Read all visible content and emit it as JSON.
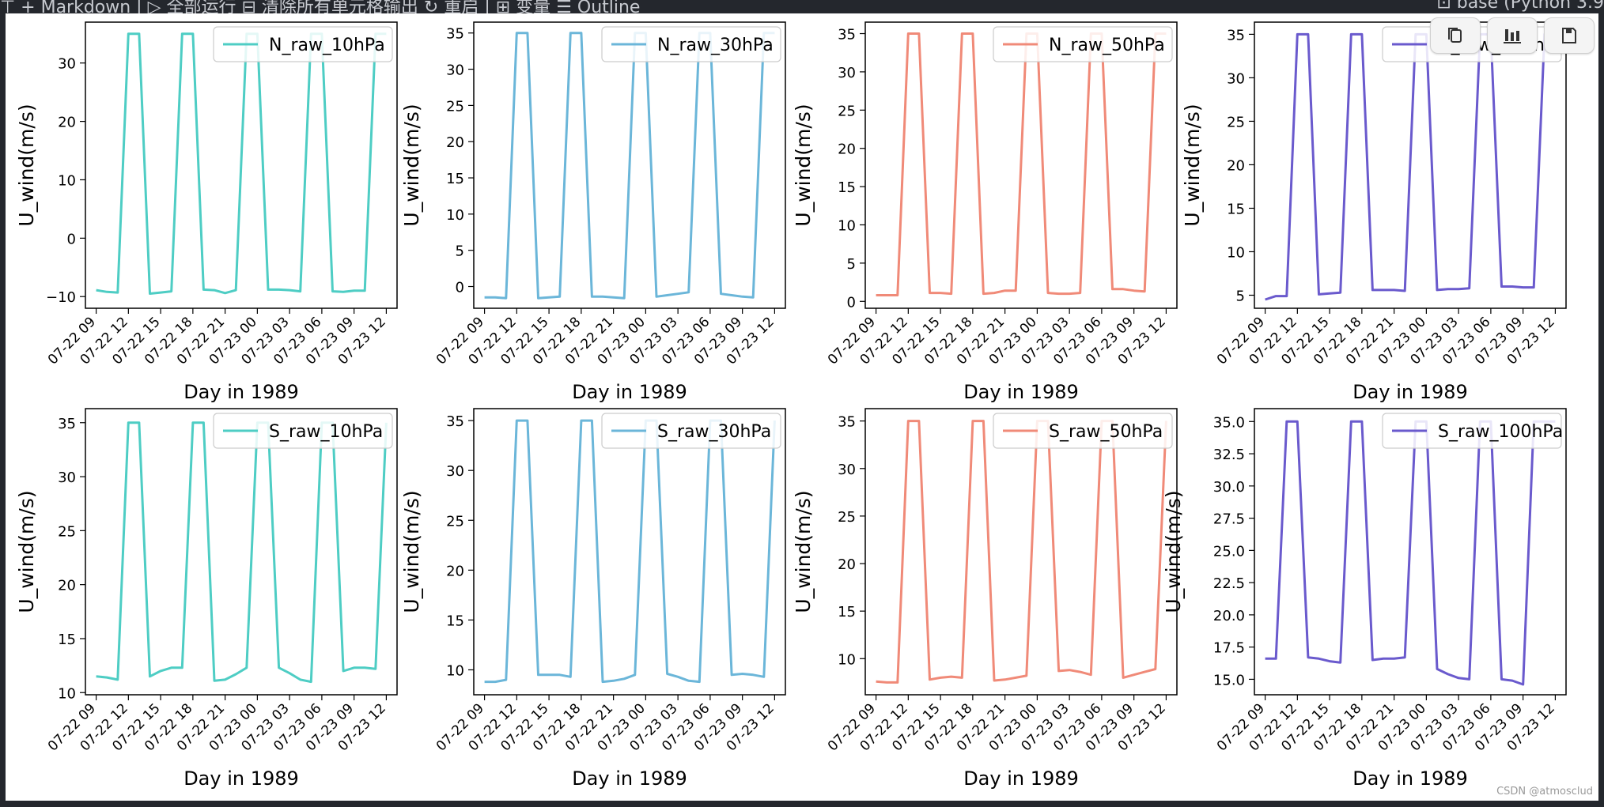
{
  "toolbar": {
    "text": "⊤  + Markdown  |  ▷ 全部运行  ⊟ 清除所有单元格输出  ↻ 重启  |  ⊞ 变量  ☰ Outline",
    "kernel": "⊡ base (Python 3.9"
  },
  "output_tools": [
    {
      "icon": "copy-icon"
    },
    {
      "icon": "chart-icon"
    },
    {
      "icon": "save-icon"
    }
  ],
  "watermark": "CSDN @atmosclud",
  "colors": {
    "teal": "#4ecdc4",
    "skyblue": "#6bb6d9",
    "salmon": "#f08a78",
    "purple": "#6a5acd"
  },
  "chart_data": [
    {
      "type": "line",
      "legend": "N_raw_10hPa",
      "color": "#4ecdc4",
      "xlabel": "Day in 1989",
      "ylabel": "U_wind(m/s)",
      "ylim": [
        -12,
        37
      ],
      "yticks": [
        -10,
        0,
        10,
        20,
        30
      ],
      "ytick_labels": [
        "−10",
        "0",
        "10",
        "20",
        "30"
      ],
      "x": [
        0,
        1,
        2,
        3,
        4,
        5,
        6,
        7,
        8,
        9,
        10,
        11,
        12,
        13,
        14,
        15,
        16,
        17,
        18,
        19,
        20,
        21,
        22,
        23,
        24,
        25,
        26,
        27
      ],
      "values": [
        -8.9,
        -9.2,
        -9.3,
        35,
        35,
        -9.5,
        -9.3,
        -9.1,
        35,
        35,
        -8.8,
        -8.9,
        -9.4,
        -8.9,
        35,
        35,
        -8.8,
        -8.8,
        -8.9,
        -9.1,
        35,
        35,
        -9.1,
        -9.2,
        -9.0,
        -9.0,
        35,
        35
      ]
    },
    {
      "type": "line",
      "legend": "N_raw_30hPa",
      "color": "#6bb6d9",
      "xlabel": "Day in 1989",
      "ylabel": "U_wind(m/s)",
      "ylim": [
        -3,
        36.5
      ],
      "yticks": [
        0,
        5,
        10,
        15,
        20,
        25,
        30,
        35
      ],
      "ytick_labels": [
        "0",
        "5",
        "10",
        "15",
        "20",
        "25",
        "30",
        "35"
      ],
      "x": [
        0,
        1,
        2,
        3,
        4,
        5,
        6,
        7,
        8,
        9,
        10,
        11,
        12,
        13,
        14,
        15,
        16,
        17,
        18,
        19,
        20,
        21,
        22,
        23,
        24,
        25,
        26,
        27
      ],
      "values": [
        -1.5,
        -1.5,
        -1.6,
        35,
        35,
        -1.6,
        -1.5,
        -1.4,
        35,
        35,
        -1.4,
        -1.4,
        -1.5,
        -1.6,
        35,
        35,
        -1.4,
        -1.2,
        -1.0,
        -0.8,
        35,
        35,
        -1.0,
        -1.2,
        -1.4,
        -1.5,
        35,
        35
      ]
    },
    {
      "type": "line",
      "legend": "N_raw_50hPa",
      "color": "#f08a78",
      "xlabel": "Day in 1989",
      "ylabel": "U_wind(m/s)",
      "ylim": [
        -0.9,
        36.5
      ],
      "yticks": [
        0,
        5,
        10,
        15,
        20,
        25,
        30,
        35
      ],
      "ytick_labels": [
        "0",
        "5",
        "10",
        "15",
        "20",
        "25",
        "30",
        "35"
      ],
      "x": [
        0,
        1,
        2,
        3,
        4,
        5,
        6,
        7,
        8,
        9,
        10,
        11,
        12,
        13,
        14,
        15,
        16,
        17,
        18,
        19,
        20,
        21,
        22,
        23,
        24,
        25,
        26,
        27
      ],
      "values": [
        0.8,
        0.8,
        0.8,
        35,
        35,
        1.1,
        1.1,
        1.0,
        35,
        35,
        1.0,
        1.1,
        1.4,
        1.4,
        35,
        35,
        1.1,
        1.0,
        1.0,
        1.1,
        35,
        35,
        1.6,
        1.6,
        1.4,
        1.3,
        35,
        35
      ]
    },
    {
      "type": "line",
      "legend": "N_raw_100hPa",
      "color": "#6a5acd",
      "xlabel": "Day in 1989",
      "ylabel": "U_wind(m/s)",
      "ylim": [
        3.5,
        36.4
      ],
      "yticks": [
        5,
        10,
        15,
        20,
        25,
        30,
        35
      ],
      "ytick_labels": [
        "5",
        "10",
        "15",
        "20",
        "25",
        "30",
        "35"
      ],
      "x": [
        0,
        1,
        2,
        3,
        4,
        5,
        6,
        7,
        8,
        9,
        10,
        11,
        12,
        13,
        14,
        15,
        16,
        17,
        18,
        19,
        20,
        21,
        22,
        23,
        24,
        25,
        26,
        27
      ],
      "values": [
        4.5,
        4.9,
        4.9,
        35,
        35,
        5.1,
        5.2,
        5.3,
        35,
        35,
        5.6,
        5.6,
        5.6,
        5.5,
        35,
        35,
        5.6,
        5.7,
        5.7,
        5.8,
        35,
        35,
        6.0,
        6.0,
        5.9,
        5.9,
        35,
        35
      ]
    },
    {
      "type": "line",
      "legend": "S_raw_10hPa",
      "color": "#4ecdc4",
      "xlabel": "Day in 1989",
      "ylabel": "U_wind(m/s)",
      "ylim": [
        9.8,
        36.3
      ],
      "yticks": [
        10,
        15,
        20,
        25,
        30,
        35
      ],
      "ytick_labels": [
        "10",
        "15",
        "20",
        "25",
        "30",
        "35"
      ],
      "x": [
        0,
        1,
        2,
        3,
        4,
        5,
        6,
        7,
        8,
        9,
        10,
        11,
        12,
        13,
        14,
        15,
        16,
        17,
        18,
        19,
        20,
        21,
        22,
        23,
        24,
        25,
        26,
        27
      ],
      "values": [
        11.5,
        11.4,
        11.2,
        35,
        35,
        11.5,
        12.0,
        12.3,
        12.3,
        35,
        35,
        11.1,
        11.2,
        11.7,
        12.3,
        35,
        35,
        12.3,
        11.8,
        11.2,
        11.0,
        35,
        35,
        12.0,
        12.3,
        12.3,
        12.2,
        35
      ]
    },
    {
      "type": "line",
      "legend": "S_raw_30hPa",
      "color": "#6bb6d9",
      "xlabel": "Day in 1989",
      "ylabel": "U_wind(m/s)",
      "ylim": [
        7.5,
        36.2
      ],
      "yticks": [
        10,
        15,
        20,
        25,
        30,
        35
      ],
      "ytick_labels": [
        "10",
        "15",
        "20",
        "25",
        "30",
        "35"
      ],
      "x": [
        0,
        1,
        2,
        3,
        4,
        5,
        6,
        7,
        8,
        9,
        10,
        11,
        12,
        13,
        14,
        15,
        16,
        17,
        18,
        19,
        20,
        21,
        22,
        23,
        24,
        25,
        26,
        27
      ],
      "values": [
        8.8,
        8.8,
        9.0,
        35,
        35,
        9.5,
        9.5,
        9.5,
        9.3,
        35,
        35,
        8.8,
        8.9,
        9.1,
        9.5,
        35,
        35,
        9.6,
        9.3,
        8.9,
        8.8,
        35,
        35,
        9.5,
        9.6,
        9.5,
        9.3,
        35
      ]
    },
    {
      "type": "line",
      "legend": "S_raw_50hPa",
      "color": "#f08a78",
      "xlabel": "Day in 1989",
      "ylabel": "U_wind(m/s)",
      "ylim": [
        6.2,
        36.3
      ],
      "yticks": [
        10,
        15,
        20,
        25,
        30,
        35
      ],
      "ytick_labels": [
        "10",
        "15",
        "20",
        "25",
        "30",
        "35"
      ],
      "x": [
        0,
        1,
        2,
        3,
        4,
        5,
        6,
        7,
        8,
        9,
        10,
        11,
        12,
        13,
        14,
        15,
        16,
        17,
        18,
        19,
        20,
        21,
        22,
        23,
        24,
        25,
        26,
        27
      ],
      "values": [
        7.6,
        7.5,
        7.5,
        35,
        35,
        7.8,
        8.0,
        8.1,
        8.0,
        35,
        35,
        7.7,
        7.8,
        8.0,
        8.2,
        35,
        35,
        8.7,
        8.8,
        8.6,
        8.3,
        35,
        35,
        8.0,
        8.3,
        8.6,
        8.9,
        35
      ]
    },
    {
      "type": "line",
      "legend": "S_raw_100hPa",
      "color": "#6a5acd",
      "xlabel": "Day in 1989",
      "ylabel": "U_wind(m/s)",
      "ylim": [
        13.8,
        36.0
      ],
      "yticks": [
        15,
        17.5,
        20,
        22.5,
        25,
        27.5,
        30,
        32.5,
        35
      ],
      "ytick_labels": [
        "15.0",
        "17.5",
        "20.0",
        "22.5",
        "25.0",
        "27.5",
        "30.0",
        "32.5",
        "35.0"
      ],
      "x": [
        0,
        1,
        2,
        3,
        4,
        5,
        6,
        7,
        8,
        9,
        10,
        11,
        12,
        13,
        14,
        15,
        16,
        17,
        18,
        19,
        20,
        21,
        22,
        23,
        24,
        25,
        26,
        27
      ],
      "values": [
        16.6,
        16.6,
        35,
        35,
        16.7,
        16.6,
        16.4,
        16.3,
        35,
        35,
        16.5,
        16.6,
        16.6,
        16.7,
        35,
        35,
        15.8,
        15.4,
        15.1,
        15.0,
        35,
        35,
        15.0,
        14.9,
        14.6,
        35,
        35,
        35
      ]
    }
  ],
  "shared_x": {
    "tick_positions": [
      0,
      3,
      6,
      9,
      12,
      15,
      18,
      21,
      24,
      27
    ],
    "tick_labels": [
      "07-22 09",
      "07-22 12",
      "07-22 15",
      "07-22 18",
      "07-22 21",
      "07-23 00",
      "07-23 03",
      "07-23 06",
      "07-23 09",
      "07-23 12"
    ]
  }
}
